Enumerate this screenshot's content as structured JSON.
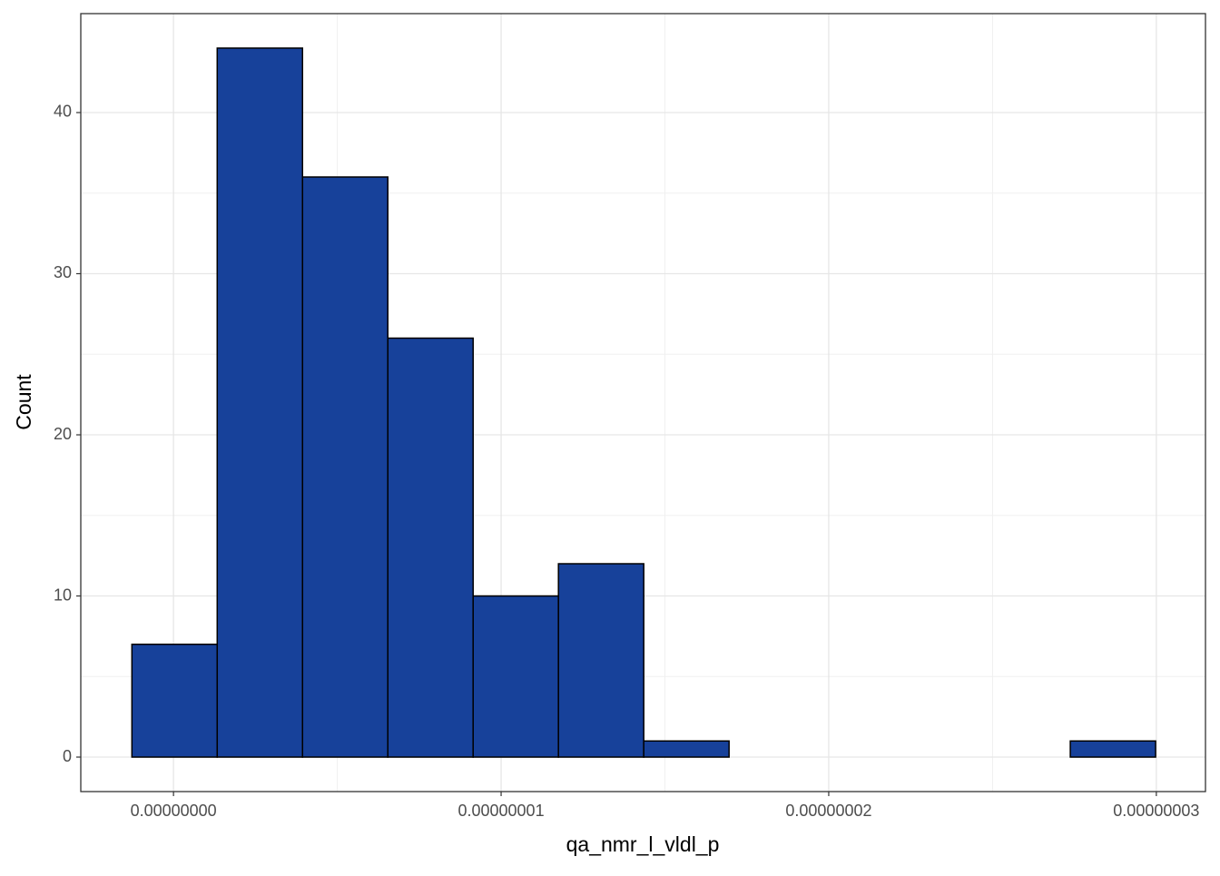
{
  "chart_data": {
    "type": "histogram",
    "x_label": "qa_nmr_l_vldl_p",
    "y_label": "Count",
    "bins": [
      -1.27e-09,
      1.334e-09,
      3.938e-09,
      6.542e-09,
      9.146e-09,
      1.175e-08,
      1.4354e-08,
      1.6958e-08,
      1.9562e-08,
      2.2166e-08,
      2.477e-08,
      2.7374e-08,
      2.9978e-08
    ],
    "values": [
      7,
      44,
      36,
      26,
      10,
      12,
      1,
      0,
      0,
      0,
      0,
      1
    ],
    "color": "#17419a",
    "edge_color": "#000000",
    "xlim": [
      -2.83e-09,
      3.15e-08
    ],
    "xticks": [
      {
        "value": 0,
        "label": "0.00000000"
      },
      {
        "value": 1e-08,
        "label": "0.00000001"
      },
      {
        "value": 2e-08,
        "label": "0.00000002"
      },
      {
        "value": 3e-08,
        "label": "0.00000003"
      }
    ],
    "ylim": [
      -2.14,
      46.14
    ],
    "yticks": [
      0,
      10,
      20,
      30,
      40
    ],
    "grid": true
  }
}
